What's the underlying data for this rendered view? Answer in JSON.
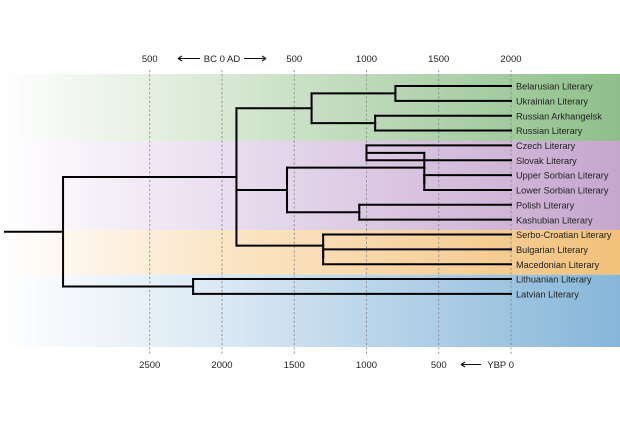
{
  "chart_data": {
    "type": "dendrogram",
    "title": "",
    "colors": {
      "East": "#8ebf8a",
      "West": "#c6a6ce",
      "South": "#f2c17a",
      "Baltic": "#86b6d9",
      "grid": "#8c8c8c",
      "branch": "#000000"
    },
    "top_axis": {
      "bc_ad_label": "BC  0  AD",
      "ticks": [
        {
          "label": "500",
          "ybp": 2500
        },
        {
          "label": "500",
          "ybp": 1500
        },
        {
          "label": "1000",
          "ybp": 1000
        },
        {
          "label": "1500",
          "ybp": 500
        },
        {
          "label": "2000",
          "ybp": 0
        }
      ]
    },
    "bottom_axis": {
      "unit_label": "YBP",
      "ticks": [
        2500,
        2000,
        1500,
        1000,
        500,
        0
      ]
    },
    "gridlines_ybp": [
      2500,
      2000,
      1500,
      1000,
      500,
      0
    ],
    "root": {
      "x": 3100,
      "children": [
        {
          "x": 2920,
          "children": [
            {
              "x": 1900,
              "children": [
                {
                  "x": 1380,
                  "group": "East",
                  "children": [
                    {
                      "x": 800,
                      "children": [
                        {
                          "label": "Belarusian Literary"
                        },
                        {
                          "label": "Ukrainian Literary"
                        }
                      ]
                    },
                    {
                      "x": 940,
                      "children": [
                        {
                          "label": "Russian Arkhangelsk"
                        },
                        {
                          "label": "Russian Literary"
                        }
                      ]
                    }
                  ]
                },
                {
                  "x": 1550,
                  "group": "West",
                  "children": [
                    {
                      "x": 600,
                      "children": [
                        {
                          "x": 1000,
                          "children": [
                            {
                              "label": "Czech Literary"
                            },
                            {
                              "label": "Slovak Literary"
                            }
                          ]
                        },
                        {
                          "x": 600,
                          "children": [
                            {
                              "label": "Upper Sorbian Literary"
                            },
                            {
                              "label": "Lower Sorbian Literary"
                            }
                          ]
                        }
                      ]
                    },
                    {
                      "x": 1050,
                      "children": [
                        {
                          "label": "Polish Literary"
                        },
                        {
                          "label": "Kashubian Literary"
                        }
                      ]
                    }
                  ]
                },
                {
                  "x": 1300,
                  "group": "South",
                  "children": [
                    {
                      "label": "Serbo-Croatian Literary"
                    },
                    {
                      "x": 1300,
                      "children": [
                        {
                          "label": "Bulgarian Literary"
                        },
                        {
                          "label": "Macedonian Literary"
                        }
                      ]
                    }
                  ]
                }
              ]
            }
          ]
        },
        {
          "x": 2200,
          "group": "Baltic",
          "children": [
            {
              "label": "Lithuanian Literary"
            },
            {
              "label": "Latvian Literary"
            }
          ]
        }
      ]
    }
  }
}
